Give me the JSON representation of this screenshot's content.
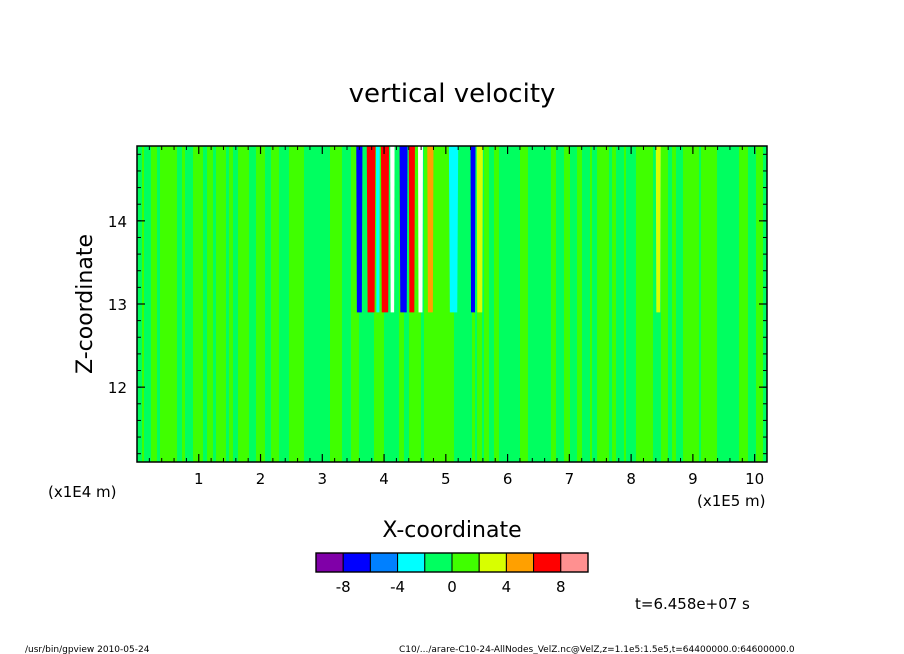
{
  "chart_data": {
    "type": "heatmap",
    "title": "vertical velocity",
    "xlabel": "X-coordinate",
    "ylabel": "Z-coordinate",
    "x_unit_left": "(x1E4 m)",
    "x_unit_right": "(x1E5 m)",
    "xlim": [
      0,
      10.2
    ],
    "ylim": [
      11.1,
      14.9
    ],
    "x_ticks": [
      "1",
      "2",
      "3",
      "4",
      "5",
      "6",
      "7",
      "8",
      "9",
      "10"
    ],
    "y_ticks": [
      "12",
      "13",
      "14"
    ],
    "colorbar": {
      "colors": [
        "#8000a8",
        "#0000ff",
        "#0080ff",
        "#00ffff",
        "#00ff60",
        "#40ff00",
        "#d8ff00",
        "#ffa000",
        "#ff0000",
        "#ff9090"
      ],
      "tick_labels": [
        "-8",
        "-4",
        "0",
        "4",
        "8"
      ]
    },
    "field_bands": [
      {
        "x0": 3.55,
        "x1": 3.65,
        "color": "#0000ff"
      },
      {
        "x0": 3.72,
        "x1": 3.86,
        "color": "#ff0000"
      },
      {
        "x0": 3.87,
        "x1": 3.93,
        "color": "#00ffff"
      },
      {
        "x0": 3.95,
        "x1": 4.08,
        "color": "#ff0000"
      },
      {
        "x0": 4.1,
        "x1": 4.17,
        "color": "#ffffff"
      },
      {
        "x0": 4.25,
        "x1": 4.38,
        "color": "#0000ff"
      },
      {
        "x0": 4.4,
        "x1": 4.5,
        "color": "#ff0000"
      },
      {
        "x0": 4.55,
        "x1": 4.63,
        "color": "#ffffff"
      },
      {
        "x0": 4.7,
        "x1": 4.8,
        "color": "#ffa000"
      },
      {
        "x0": 5.05,
        "x1": 5.2,
        "color": "#00ffff"
      },
      {
        "x0": 5.4,
        "x1": 5.48,
        "color": "#0000ff"
      },
      {
        "x0": 5.5,
        "x1": 5.6,
        "color": "#d8ff00"
      },
      {
        "x0": 8.4,
        "x1": 8.48,
        "color": "#d8ff00"
      }
    ],
    "time_label": "t=6.458e+07 s"
  },
  "footer": {
    "left": "/usr/bin/gpview   2010-05-24",
    "right": "C10/.../arare-C10-24-AllNodes_VelZ.nc@VelZ,z=1.1e5:1.5e5,t=64400000.0:64600000.0"
  }
}
